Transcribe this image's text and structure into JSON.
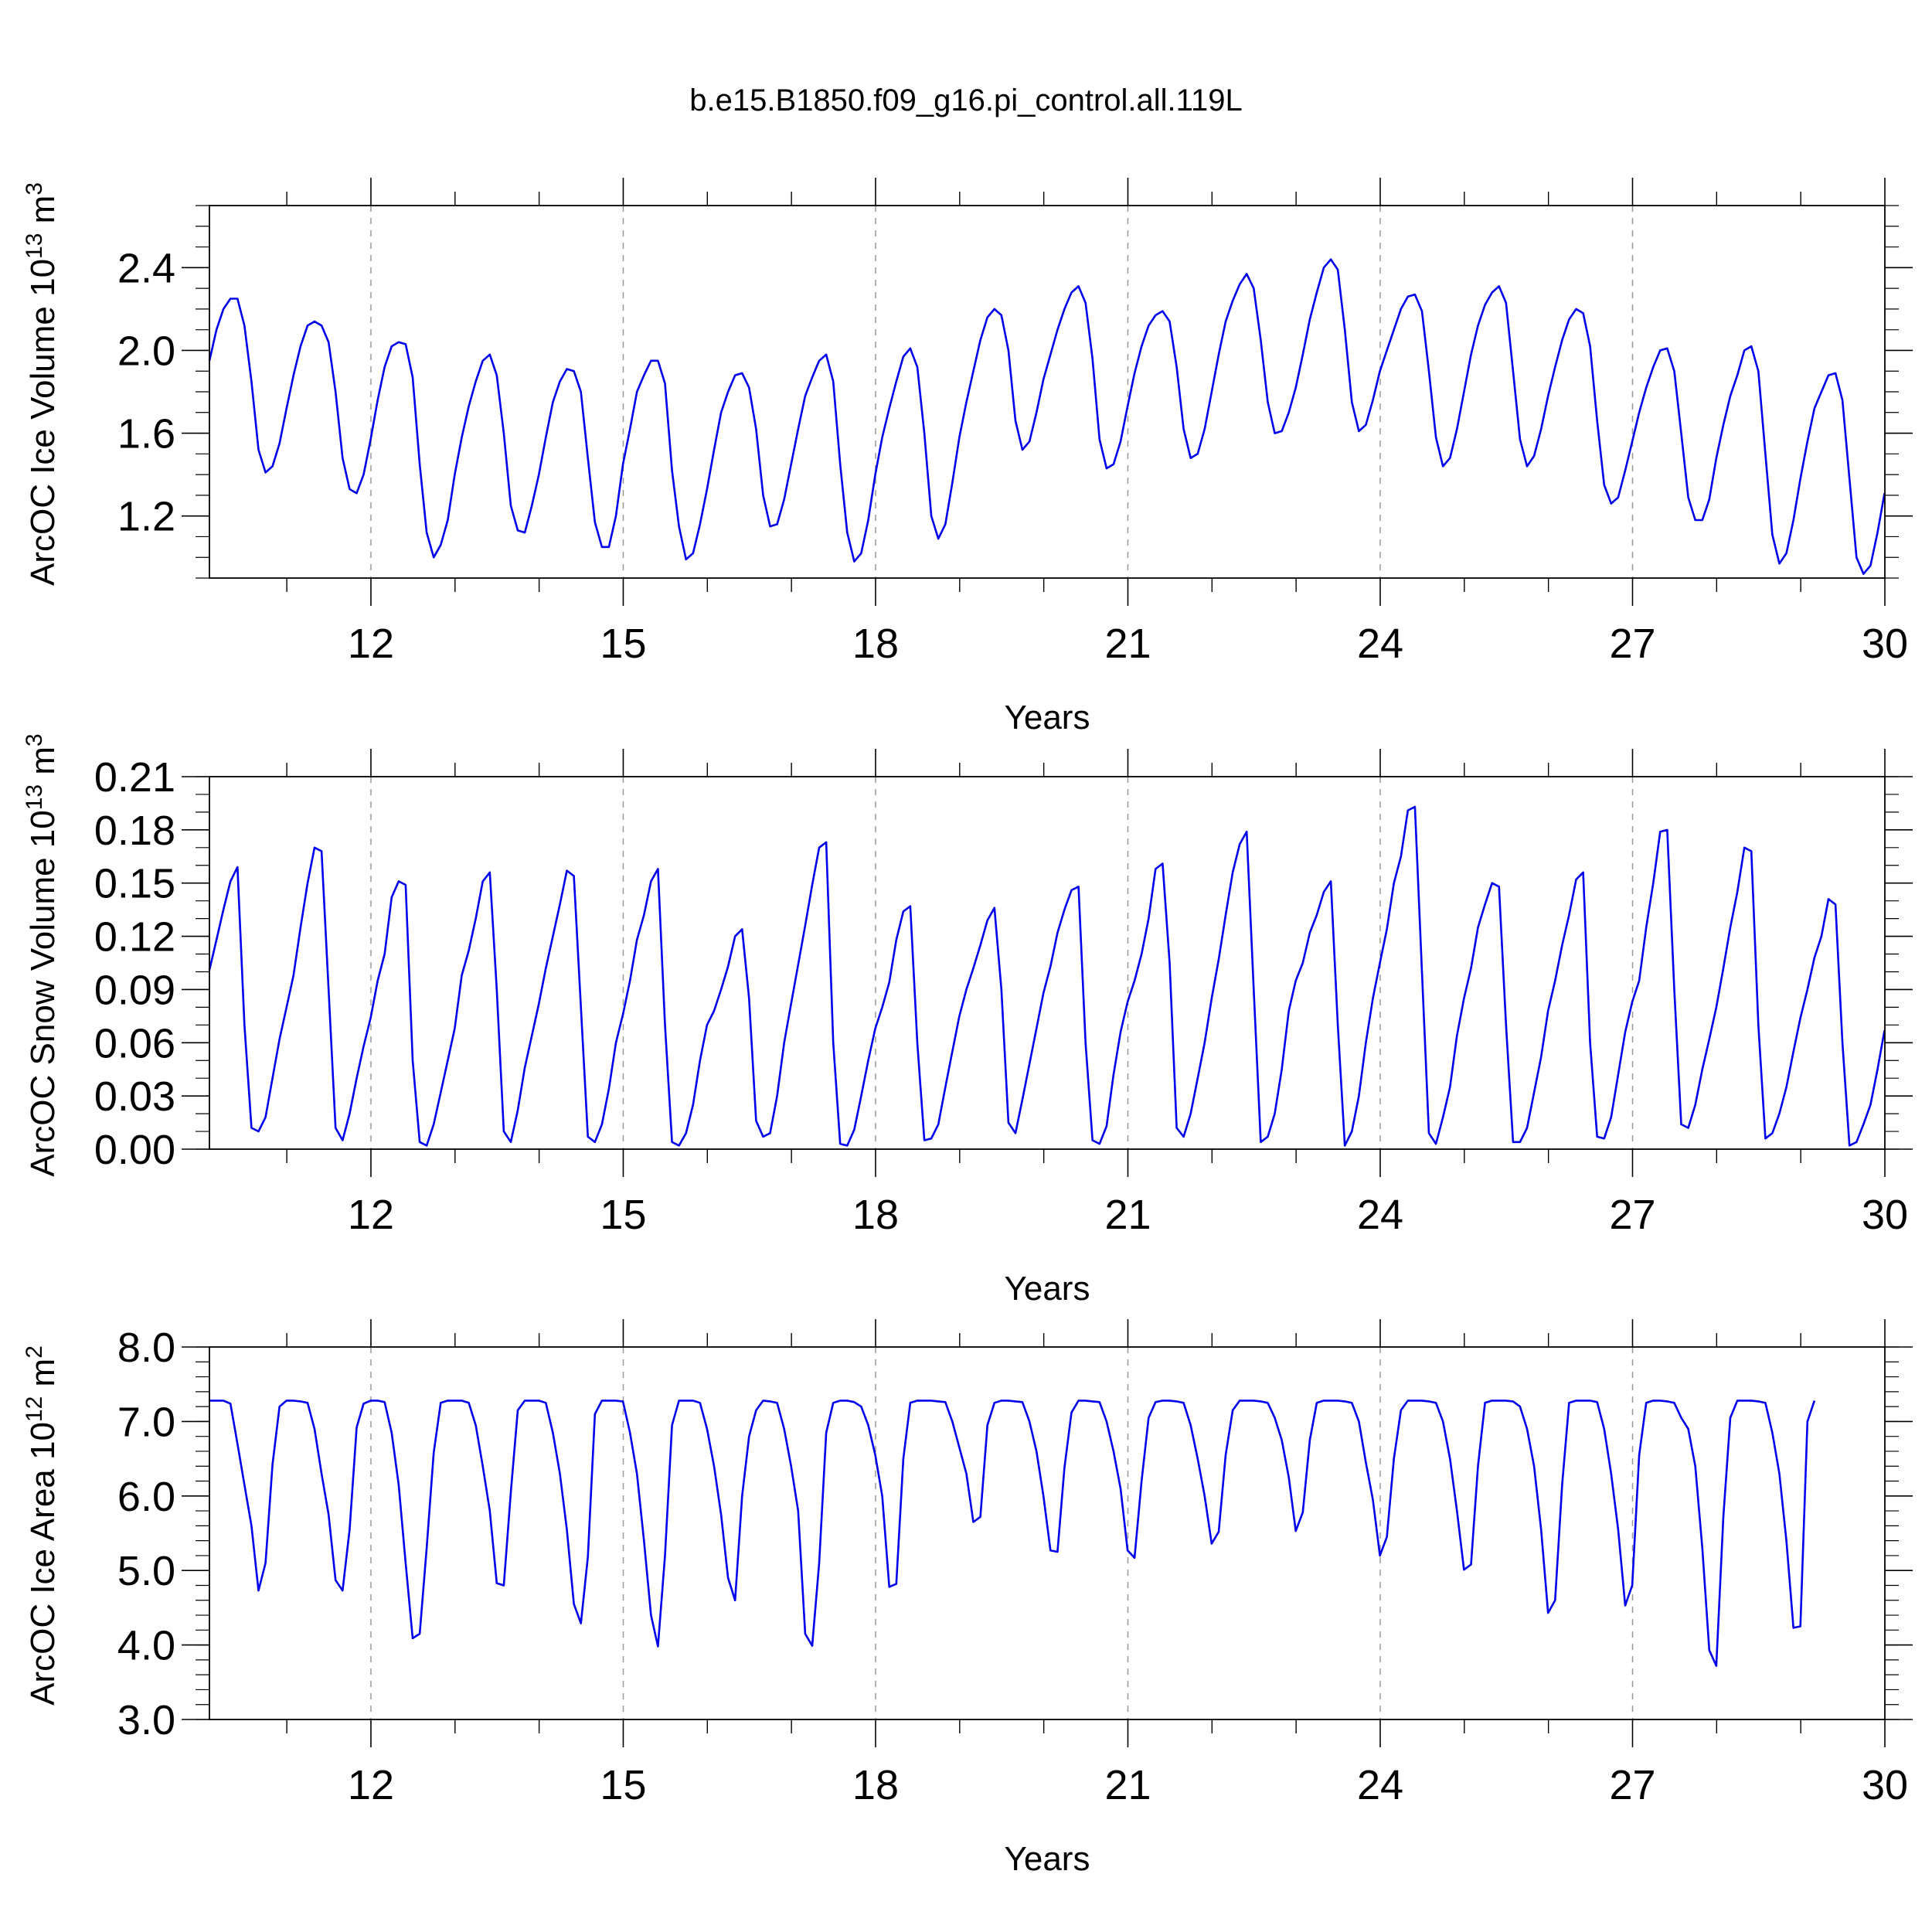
{
  "title": "b.e15.B1850.f09_g16.pi_control.all.119L",
  "colors": {
    "line": "#0000ee",
    "axis": "#000000",
    "grid": "#999999"
  },
  "chart_data": [
    {
      "type": "line",
      "ylabel_text": "ArcOC Ice Volume 10",
      "ylabel_exp": "13",
      "ylabel_unit": "m",
      "ylabel_unit_exp": "3",
      "xlabel": "Years",
      "xlim": [
        10.08,
        30.0
      ],
      "ylim": [
        0.9,
        2.7
      ],
      "xticks": [
        "12",
        "15",
        "18",
        "21",
        "24",
        "27",
        "30"
      ],
      "xtick_values": [
        12,
        15,
        18,
        21,
        24,
        27,
        30
      ],
      "yticks": [
        "1.2",
        "1.6",
        "2.0",
        "2.4"
      ],
      "ytick_values": [
        1.2,
        1.6,
        2.0,
        2.4
      ],
      "yminor_step": 0.1,
      "grid": "vertical dashed at major x ticks",
      "series": [
        {
          "x_start": 10.08,
          "x_step": 0.08333,
          "values": [
            1.95,
            2.1,
            2.2,
            2.25,
            2.25,
            2.12,
            1.85,
            1.52,
            1.41,
            1.44,
            1.55,
            1.72,
            1.88,
            2.02,
            2.12,
            2.14,
            2.12,
            2.04,
            1.8,
            1.48,
            1.33,
            1.31,
            1.4,
            1.57,
            1.76,
            1.92,
            2.02,
            2.04,
            2.03,
            1.87,
            1.45,
            1.12,
            1.0,
            1.06,
            1.18,
            1.4,
            1.58,
            1.73,
            1.85,
            1.95,
            1.98,
            1.88,
            1.6,
            1.25,
            1.13,
            1.12,
            1.25,
            1.4,
            1.58,
            1.75,
            1.85,
            1.91,
            1.9,
            1.8,
            1.48,
            1.17,
            1.05,
            1.05,
            1.2,
            1.45,
            1.62,
            1.8,
            1.88,
            1.95,
            1.95,
            1.84,
            1.42,
            1.15,
            0.99,
            1.02,
            1.16,
            1.33,
            1.52,
            1.7,
            1.8,
            1.88,
            1.89,
            1.82,
            1.62,
            1.3,
            1.15,
            1.16,
            1.28,
            1.45,
            1.62,
            1.78,
            1.87,
            1.95,
            1.98,
            1.85,
            1.45,
            1.12,
            0.98,
            1.02,
            1.18,
            1.4,
            1.58,
            1.72,
            1.85,
            1.97,
            2.01,
            1.92,
            1.6,
            1.2,
            1.09,
            1.16,
            1.36,
            1.58,
            1.75,
            1.9,
            2.05,
            2.16,
            2.2,
            2.17,
            2.0,
            1.66,
            1.52,
            1.56,
            1.7,
            1.86,
            1.98,
            2.1,
            2.2,
            2.28,
            2.31,
            2.23,
            1.96,
            1.57,
            1.43,
            1.45,
            1.56,
            1.73,
            1.89,
            2.02,
            2.12,
            2.17,
            2.19,
            2.14,
            1.92,
            1.62,
            1.48,
            1.5,
            1.62,
            1.8,
            1.98,
            2.14,
            2.24,
            2.32,
            2.37,
            2.3,
            2.05,
            1.75,
            1.6,
            1.61,
            1.7,
            1.82,
            1.98,
            2.15,
            2.28,
            2.4,
            2.44,
            2.39,
            2.1,
            1.75,
            1.61,
            1.64,
            1.76,
            1.9,
            2.0,
            2.1,
            2.2,
            2.26,
            2.27,
            2.19,
            1.9,
            1.58,
            1.44,
            1.48,
            1.62,
            1.8,
            1.98,
            2.12,
            2.22,
            2.28,
            2.31,
            2.23,
            1.9,
            1.57,
            1.44,
            1.49,
            1.62,
            1.78,
            1.92,
            2.05,
            2.15,
            2.2,
            2.18,
            2.02,
            1.66,
            1.35,
            1.26,
            1.29,
            1.42,
            1.56,
            1.7,
            1.82,
            1.92,
            2.0,
            2.01,
            1.9,
            1.6,
            1.29,
            1.18,
            1.18,
            1.28,
            1.48,
            1.64,
            1.78,
            1.88,
            2.0,
            2.02,
            1.9,
            1.5,
            1.11,
            0.97,
            1.02,
            1.18,
            1.38,
            1.56,
            1.72,
            1.8,
            1.88,
            1.89,
            1.76,
            1.38,
            1.0,
            0.92,
            0.96,
            1.12,
            1.31
          ]
        }
      ]
    },
    {
      "type": "line",
      "ylabel_text": "ArcOC Snow Volume 10",
      "ylabel_exp": "13",
      "ylabel_unit": "m",
      "ylabel_unit_exp": "3",
      "xlabel": "Years",
      "xlim": [
        10.08,
        30.0
      ],
      "ylim": [
        0.0,
        0.21
      ],
      "xticks": [
        "12",
        "15",
        "18",
        "21",
        "24",
        "27",
        "30"
      ],
      "xtick_values": [
        12,
        15,
        18,
        21,
        24,
        27,
        30
      ],
      "yticks": [
        "0.00",
        "0.03",
        "0.06",
        "0.09",
        "0.12",
        "0.15",
        "0.18",
        "0.21"
      ],
      "ytick_values": [
        0.0,
        0.03,
        0.06,
        0.09,
        0.12,
        0.15,
        0.18,
        0.21
      ],
      "yminor_step": 0.01,
      "grid": "vertical dashed at major x ticks",
      "series": [
        {
          "x_start": 10.08,
          "x_step": 0.08333,
          "values": [
            0.101,
            0.118,
            0.135,
            0.151,
            0.159,
            0.07,
            0.012,
            0.01,
            0.018,
            0.04,
            0.062,
            0.08,
            0.098,
            0.125,
            0.15,
            0.17,
            0.168,
            0.09,
            0.012,
            0.005,
            0.02,
            0.04,
            0.058,
            0.074,
            0.095,
            0.11,
            0.142,
            0.151,
            0.149,
            0.05,
            0.004,
            0.002,
            0.014,
            0.032,
            0.05,
            0.068,
            0.098,
            0.112,
            0.13,
            0.151,
            0.156,
            0.09,
            0.01,
            0.004,
            0.022,
            0.046,
            0.064,
            0.082,
            0.102,
            0.12,
            0.138,
            0.157,
            0.154,
            0.08,
            0.007,
            0.004,
            0.014,
            0.034,
            0.06,
            0.076,
            0.095,
            0.118,
            0.132,
            0.151,
            0.158,
            0.07,
            0.004,
            0.002,
            0.009,
            0.025,
            0.05,
            0.07,
            0.078,
            0.09,
            0.103,
            0.12,
            0.124,
            0.085,
            0.016,
            0.007,
            0.009,
            0.03,
            0.06,
            0.082,
            0.104,
            0.126,
            0.149,
            0.17,
            0.173,
            0.06,
            0.003,
            0.002,
            0.011,
            0.03,
            0.05,
            0.068,
            0.08,
            0.094,
            0.118,
            0.134,
            0.137,
            0.06,
            0.005,
            0.006,
            0.014,
            0.035,
            0.055,
            0.075,
            0.09,
            0.102,
            0.115,
            0.129,
            0.136,
            0.09,
            0.015,
            0.009,
            0.028,
            0.048,
            0.068,
            0.088,
            0.103,
            0.122,
            0.135,
            0.146,
            0.148,
            0.06,
            0.005,
            0.003,
            0.013,
            0.042,
            0.066,
            0.083,
            0.095,
            0.11,
            0.13,
            0.158,
            0.161,
            0.105,
            0.012,
            0.007,
            0.02,
            0.04,
            0.06,
            0.085,
            0.107,
            0.132,
            0.156,
            0.172,
            0.179,
            0.09,
            0.004,
            0.007,
            0.02,
            0.045,
            0.078,
            0.095,
            0.105,
            0.122,
            0.132,
            0.145,
            0.151,
            0.07,
            0.002,
            0.01,
            0.03,
            0.06,
            0.085,
            0.105,
            0.124,
            0.15,
            0.165,
            0.191,
            0.193,
            0.1,
            0.009,
            0.003,
            0.018,
            0.035,
            0.064,
            0.085,
            0.102,
            0.125,
            0.138,
            0.15,
            0.148,
            0.07,
            0.004,
            0.004,
            0.012,
            0.032,
            0.052,
            0.078,
            0.095,
            0.115,
            0.132,
            0.152,
            0.156,
            0.06,
            0.007,
            0.006,
            0.018,
            0.042,
            0.066,
            0.083,
            0.095,
            0.125,
            0.15,
            0.179,
            0.18,
            0.09,
            0.014,
            0.012,
            0.025,
            0.045,
            0.062,
            0.08,
            0.102,
            0.125,
            0.145,
            0.17,
            0.168,
            0.07,
            0.006,
            0.009,
            0.02,
            0.035,
            0.055,
            0.074,
            0.09,
            0.108,
            0.12,
            0.141,
            0.138,
            0.06,
            0.002,
            0.004,
            0.014,
            0.025,
            0.045,
            0.067
          ]
        }
      ]
    },
    {
      "type": "line",
      "ylabel_text": "ArcOC Ice Area 10",
      "ylabel_exp": "12",
      "ylabel_unit": "m",
      "ylabel_unit_exp": "2",
      "xlabel": "Years",
      "xlim": [
        10.08,
        30.0
      ],
      "ylim": [
        3.0,
        8.0
      ],
      "xticks": [
        "12",
        "15",
        "18",
        "21",
        "24",
        "27",
        "30"
      ],
      "xtick_values": [
        12,
        15,
        18,
        21,
        24,
        27,
        30
      ],
      "yticks": [
        "3.0",
        "4.0",
        "5.0",
        "6.0",
        "7.0",
        "8.0"
      ],
      "ytick_values": [
        3.0,
        4.0,
        5.0,
        6.0,
        7.0,
        8.0
      ],
      "yminor_step": 0.2,
      "grid": "vertical dashed at major x ticks",
      "series": [
        {
          "x_start": 10.08,
          "x_step": 0.08333,
          "values": [
            7.28,
            7.28,
            7.28,
            7.24,
            6.7,
            6.15,
            5.6,
            4.73,
            5.1,
            6.42,
            7.2,
            7.28,
            7.28,
            7.27,
            7.25,
            6.9,
            6.3,
            5.75,
            4.87,
            4.73,
            5.55,
            6.92,
            7.24,
            7.28,
            7.28,
            7.26,
            6.85,
            6.15,
            5.1,
            4.09,
            4.15,
            5.3,
            6.58,
            7.25,
            7.28,
            7.28,
            7.28,
            7.25,
            6.95,
            6.4,
            5.8,
            4.83,
            4.8,
            6.05,
            7.15,
            7.28,
            7.28,
            7.28,
            7.25,
            6.85,
            6.3,
            5.55,
            4.55,
            4.29,
            5.18,
            7.1,
            7.28,
            7.28,
            7.28,
            7.27,
            6.85,
            6.3,
            5.4,
            4.4,
            3.98,
            5.2,
            6.95,
            7.28,
            7.28,
            7.28,
            7.25,
            6.9,
            6.4,
            5.75,
            4.9,
            4.6,
            6.0,
            6.8,
            7.15,
            7.28,
            7.27,
            7.25,
            6.9,
            6.4,
            5.8,
            4.15,
            3.99,
            5.1,
            6.85,
            7.25,
            7.28,
            7.28,
            7.26,
            7.2,
            6.95,
            6.55,
            6.0,
            4.78,
            4.82,
            6.5,
            7.25,
            7.28,
            7.28,
            7.28,
            7.27,
            7.26,
            7.0,
            6.65,
            6.3,
            5.65,
            5.72,
            6.95,
            7.25,
            7.28,
            7.28,
            7.27,
            7.26,
            7.0,
            6.6,
            6.0,
            5.27,
            5.25,
            6.38,
            7.12,
            7.28,
            7.28,
            7.27,
            7.26,
            7.0,
            6.6,
            6.1,
            5.27,
            5.17,
            6.2,
            7.05,
            7.26,
            7.28,
            7.28,
            7.27,
            7.25,
            6.95,
            6.5,
            6.0,
            5.36,
            5.52,
            6.55,
            7.15,
            7.28,
            7.28,
            7.28,
            7.27,
            7.25,
            7.05,
            6.75,
            6.25,
            5.53,
            5.78,
            6.75,
            7.25,
            7.28,
            7.28,
            7.28,
            7.27,
            7.25,
            7.0,
            6.45,
            5.95,
            5.2,
            5.45,
            6.5,
            7.15,
            7.28,
            7.28,
            7.28,
            7.27,
            7.25,
            7.0,
            6.5,
            5.8,
            5.01,
            5.08,
            6.4,
            7.25,
            7.28,
            7.28,
            7.28,
            7.27,
            7.2,
            6.9,
            6.4,
            5.55,
            4.43,
            4.6,
            6.15,
            7.25,
            7.28,
            7.28,
            7.28,
            7.26,
            6.9,
            6.3,
            5.55,
            4.53,
            4.8,
            6.55,
            7.25,
            7.28,
            7.28,
            7.27,
            7.25,
            7.05,
            6.9,
            6.4,
            5.3,
            3.93,
            3.72,
            5.72,
            7.05,
            7.28,
            7.28,
            7.28,
            7.27,
            7.25,
            6.85,
            6.3,
            5.4,
            4.23,
            4.25,
            7.0,
            7.28
          ]
        }
      ]
    }
  ]
}
